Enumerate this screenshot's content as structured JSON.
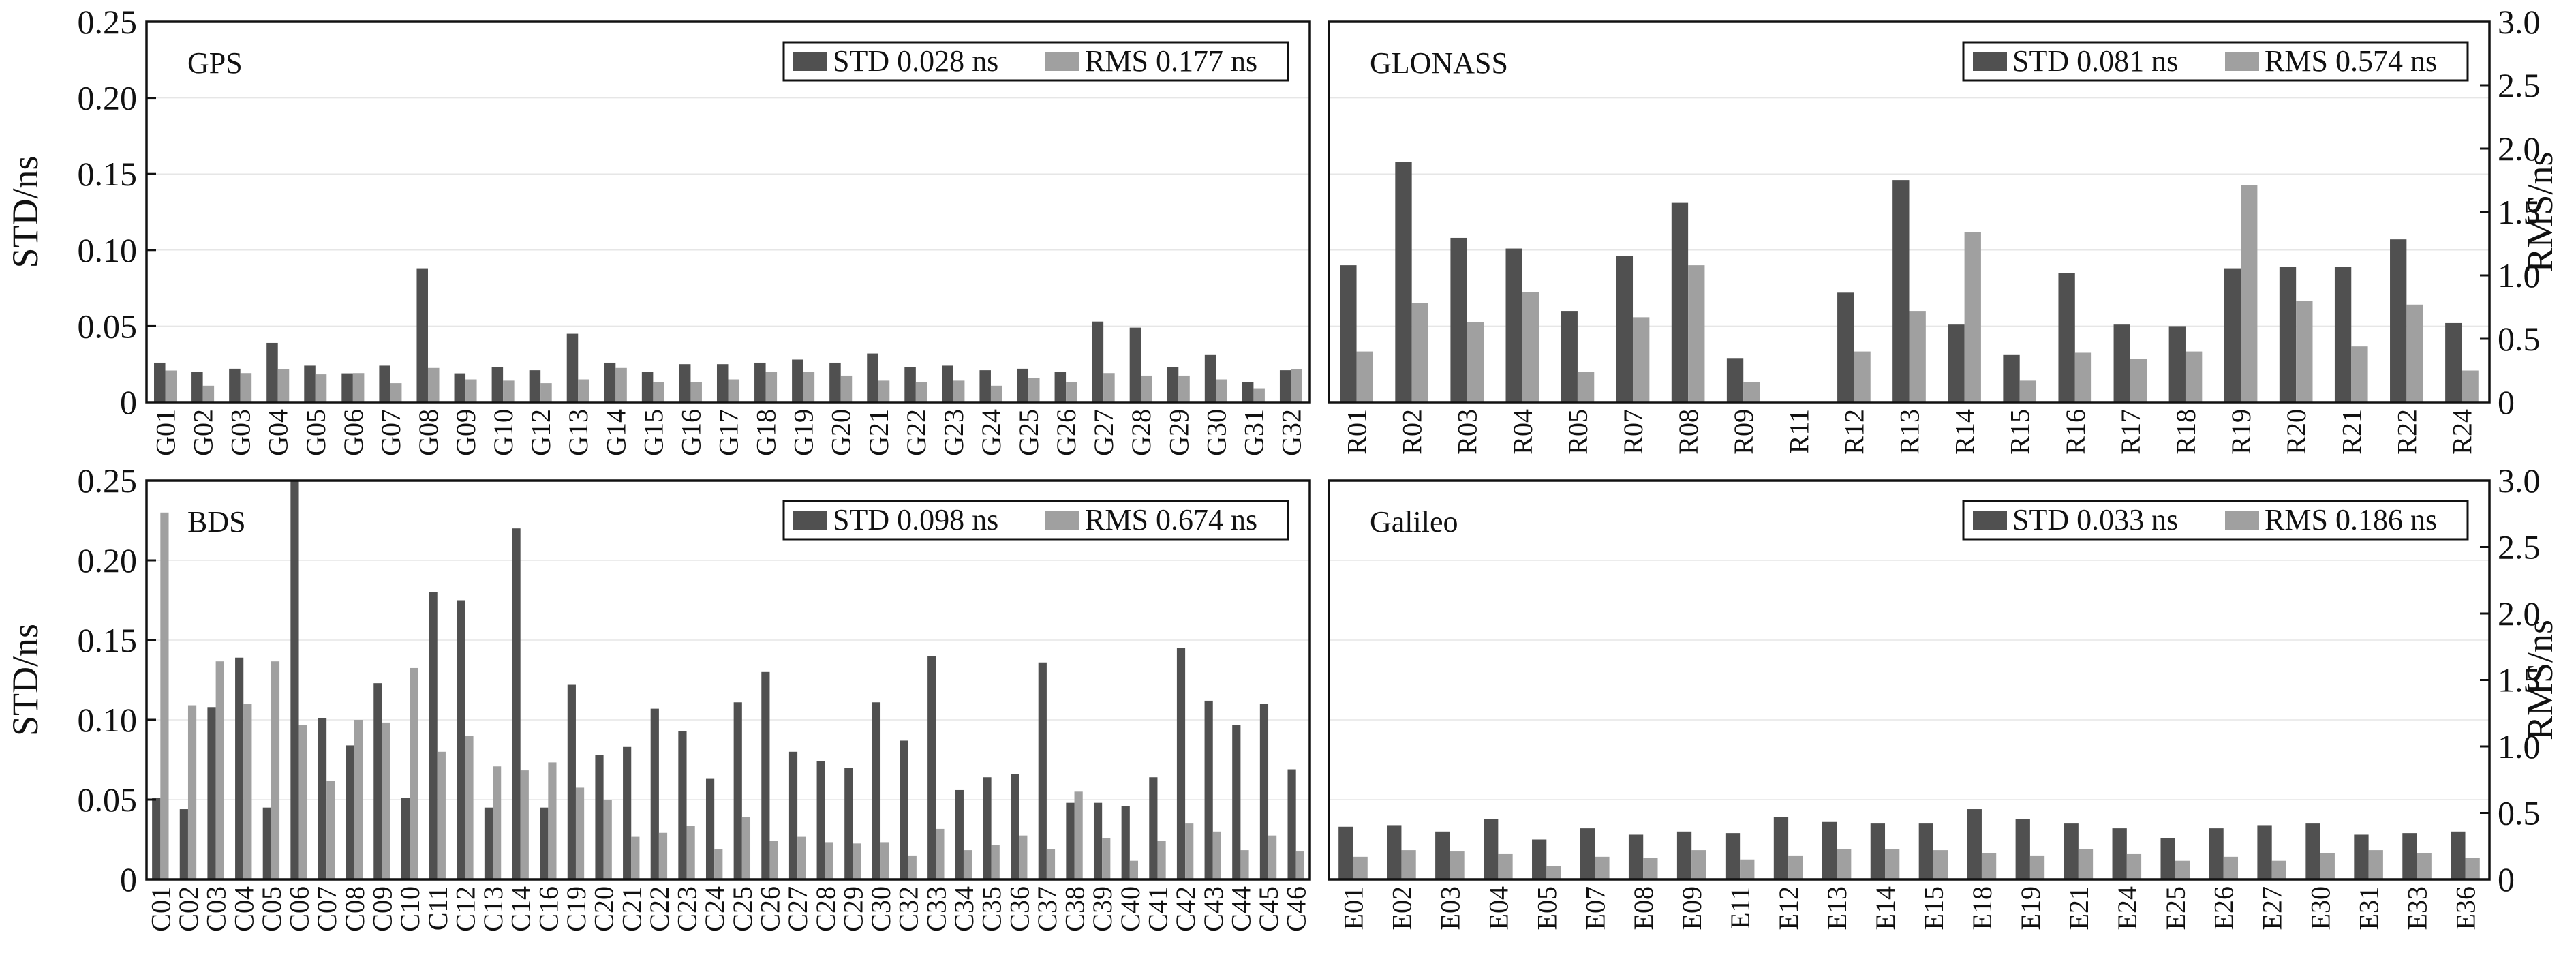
{
  "colors": {
    "std": "#505050",
    "rms": "#a0a0a0",
    "frame": "#111111"
  },
  "axes": {
    "left_label": "STD/ns",
    "right_label": "RMS/ns"
  },
  "chart_data": [
    {
      "type": "bar",
      "system": "GPS",
      "legend": {
        "std": "STD 0.028 ns",
        "rms": "RMS 0.177 ns",
        "placement": "top-right"
      },
      "categories": [
        "G01",
        "G02",
        "G03",
        "G04",
        "G05",
        "G06",
        "G07",
        "G08",
        "G09",
        "G10",
        "G12",
        "G13",
        "G14",
        "G15",
        "G16",
        "G17",
        "G18",
        "G19",
        "G20",
        "G21",
        "G22",
        "G23",
        "G24",
        "G25",
        "G26",
        "G27",
        "G28",
        "G29",
        "G30",
        "G31",
        "G32"
      ],
      "series": [
        {
          "name": "STD",
          "axis": "left",
          "values": [
            0.026,
            0.02,
            0.022,
            0.039,
            0.024,
            0.019,
            0.024,
            0.088,
            0.019,
            0.023,
            0.021,
            0.045,
            0.026,
            0.02,
            0.025,
            0.025,
            0.026,
            0.028,
            0.026,
            0.032,
            0.023,
            0.024,
            0.021,
            0.022,
            0.02,
            0.053,
            0.049,
            0.023,
            0.031,
            0.013,
            0.021
          ]
        },
        {
          "name": "RMS",
          "axis": "right",
          "values": [
            0.25,
            0.13,
            0.23,
            0.26,
            0.22,
            0.23,
            0.15,
            0.27,
            0.18,
            0.17,
            0.15,
            0.18,
            0.27,
            0.16,
            0.16,
            0.18,
            0.24,
            0.24,
            0.21,
            0.17,
            0.16,
            0.17,
            0.13,
            0.19,
            0.16,
            0.23,
            0.21,
            0.21,
            0.18,
            0.11,
            0.26
          ]
        }
      ],
      "ylim_left": [
        0,
        0.25
      ],
      "ylim_right": [
        0,
        3.0
      ],
      "yticks_left": [
        "0",
        "0.05",
        "0.10",
        "0.15",
        "0.20",
        "0.25"
      ],
      "yticks_right": [],
      "grid": true
    },
    {
      "type": "bar",
      "system": "GLONASS",
      "legend": {
        "std": "STD 0.081 ns",
        "rms": "RMS 0.574 ns",
        "placement": "top-right"
      },
      "categories": [
        "R01",
        "R02",
        "R03",
        "R04",
        "R05",
        "R07",
        "R08",
        "R09",
        "R11",
        "R12",
        "R13",
        "R14",
        "R15",
        "R16",
        "R17",
        "R18",
        "R19",
        "R20",
        "R21",
        "R22",
        "R24"
      ],
      "series": [
        {
          "name": "STD",
          "axis": "left",
          "values": [
            0.09,
            0.158,
            0.108,
            0.101,
            0.06,
            0.096,
            0.131,
            0.029,
            0.0,
            0.072,
            0.146,
            0.051,
            0.031,
            0.085,
            0.051,
            0.05,
            0.088,
            0.089,
            0.089,
            0.107,
            0.052
          ]
        },
        {
          "name": "RMS",
          "axis": "right",
          "values": [
            0.4,
            0.78,
            0.63,
            0.87,
            0.24,
            0.67,
            1.08,
            0.16,
            0.0,
            0.4,
            0.72,
            1.34,
            0.17,
            0.39,
            0.34,
            0.4,
            1.71,
            0.8,
            0.44,
            0.77,
            0.25
          ]
        }
      ],
      "ylim_left": [
        0,
        0.25
      ],
      "ylim_right": [
        0,
        3.0
      ],
      "yticks_left": [],
      "yticks_right": [
        "0",
        "0.5",
        "1.0",
        "1.5",
        "2.0",
        "2.5",
        "3.0"
      ],
      "grid": true
    },
    {
      "type": "bar",
      "system": "BDS",
      "legend": {
        "std": "STD 0.098 ns",
        "rms": "RMS 0.674 ns",
        "placement": "top-right"
      },
      "categories": [
        "C01",
        "C02",
        "C03",
        "C04",
        "C05",
        "C06",
        "C07",
        "C08",
        "C09",
        "C10",
        "C11",
        "C12",
        "C13",
        "C14",
        "C16",
        "C19",
        "C20",
        "C21",
        "C22",
        "C23",
        "C24",
        "C25",
        "C26",
        "C27",
        "C28",
        "C29",
        "C30",
        "C32",
        "C33",
        "C34",
        "C35",
        "C36",
        "C37",
        "C38",
        "C39",
        "C40",
        "C41",
        "C42",
        "C43",
        "C44",
        "C45",
        "C46"
      ],
      "series": [
        {
          "name": "STD",
          "axis": "left",
          "values": [
            0.051,
            0.044,
            0.108,
            0.139,
            0.045,
            0.25,
            0.101,
            0.084,
            0.123,
            0.051,
            0.18,
            0.175,
            0.045,
            0.22,
            0.045,
            0.122,
            0.078,
            0.083,
            0.107,
            0.093,
            0.063,
            0.111,
            0.13,
            0.08,
            0.074,
            0.07,
            0.111,
            0.087,
            0.14,
            0.056,
            0.064,
            0.066,
            0.136,
            0.048,
            0.048,
            0.046,
            0.064,
            0.145,
            0.112,
            0.097,
            0.11,
            0.069
          ]
        },
        {
          "name": "RMS",
          "axis": "right",
          "values": [
            2.76,
            1.31,
            1.64,
            1.32,
            1.64,
            1.16,
            0.74,
            1.2,
            1.18,
            1.59,
            0.96,
            1.08,
            0.85,
            0.82,
            0.88,
            0.69,
            0.6,
            0.32,
            0.35,
            0.4,
            0.23,
            0.47,
            0.29,
            0.32,
            0.28,
            0.27,
            0.28,
            0.18,
            0.38,
            0.22,
            0.26,
            0.33,
            0.23,
            0.66,
            0.31,
            0.14,
            0.29,
            0.42,
            0.36,
            0.22,
            0.33,
            0.21
          ]
        }
      ],
      "ylim_left": [
        0,
        0.25
      ],
      "ylim_right": [
        0,
        3.0
      ],
      "yticks_left": [
        "0",
        "0.05",
        "0.10",
        "0.15",
        "0.20",
        "0.25"
      ],
      "yticks_right": [],
      "grid": true
    },
    {
      "type": "bar",
      "system": "Galileo",
      "legend": {
        "std": "STD 0.033 ns",
        "rms": "RMS 0.186 ns",
        "placement": "top-right"
      },
      "categories": [
        "E01",
        "E02",
        "E03",
        "E04",
        "E05",
        "E07",
        "E08",
        "E09",
        "E11",
        "E12",
        "E13",
        "E14",
        "E15",
        "E18",
        "E19",
        "E21",
        "E24",
        "E25",
        "E26",
        "E27",
        "E30",
        "E31",
        "E33",
        "E36"
      ],
      "series": [
        {
          "name": "STD",
          "axis": "left",
          "values": [
            0.033,
            0.034,
            0.03,
            0.038,
            0.025,
            0.032,
            0.028,
            0.03,
            0.029,
            0.039,
            0.036,
            0.035,
            0.035,
            0.044,
            0.038,
            0.035,
            0.032,
            0.026,
            0.032,
            0.034,
            0.035,
            0.028,
            0.029,
            0.03
          ]
        },
        {
          "name": "RMS",
          "axis": "right",
          "values": [
            0.17,
            0.22,
            0.21,
            0.19,
            0.1,
            0.17,
            0.16,
            0.22,
            0.15,
            0.18,
            0.23,
            0.23,
            0.22,
            0.2,
            0.18,
            0.23,
            0.19,
            0.14,
            0.17,
            0.14,
            0.2,
            0.22,
            0.2,
            0.16
          ]
        }
      ],
      "ylim_left": [
        0,
        0.25
      ],
      "ylim_right": [
        0,
        3.0
      ],
      "yticks_left": [],
      "yticks_right": [
        "0",
        "0.5",
        "1.0",
        "1.5",
        "2.0",
        "2.5",
        "3.0"
      ],
      "grid": true
    }
  ]
}
